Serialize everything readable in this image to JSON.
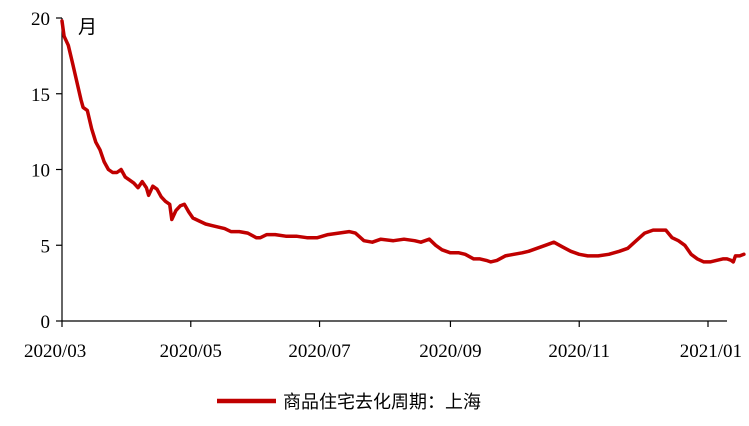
{
  "chart_data": {
    "type": "line",
    "title": "",
    "xlabel": "",
    "ylabel": "月",
    "ylim": [
      0,
      20
    ],
    "yticks": [
      0,
      5,
      10,
      15,
      20
    ],
    "xlim": [
      "2020-03-01",
      "2021-01-10"
    ],
    "xticks": [
      {
        "date": "2020-03-01",
        "label": "2020/03"
      },
      {
        "date": "2020-05-01",
        "label": "2020/05"
      },
      {
        "date": "2020-07-01",
        "label": "2020/07"
      },
      {
        "date": "2020-09-01",
        "label": "2020/09"
      },
      {
        "date": "2020-11-01",
        "label": "2020/11"
      },
      {
        "date": "2021-01-01",
        "label": "2021/01"
      }
    ],
    "grid": false,
    "legend_position": "bottom-center",
    "series": [
      {
        "name": "商品住宅去化周期：上海",
        "color": "#c00000",
        "points": [
          [
            "2020-03-01",
            19.8
          ],
          [
            "2020-03-02",
            18.8
          ],
          [
            "2020-03-04",
            18.2
          ],
          [
            "2020-03-06",
            17.0
          ],
          [
            "2020-03-08",
            15.8
          ],
          [
            "2020-03-10",
            14.6
          ],
          [
            "2020-03-11",
            14.1
          ],
          [
            "2020-03-13",
            13.9
          ],
          [
            "2020-03-15",
            12.7
          ],
          [
            "2020-03-17",
            11.8
          ],
          [
            "2020-03-19",
            11.3
          ],
          [
            "2020-03-21",
            10.5
          ],
          [
            "2020-03-23",
            10.0
          ],
          [
            "2020-03-25",
            9.8
          ],
          [
            "2020-03-27",
            9.8
          ],
          [
            "2020-03-29",
            10.0
          ],
          [
            "2020-03-31",
            9.5
          ],
          [
            "2020-04-02",
            9.3
          ],
          [
            "2020-04-04",
            9.1
          ],
          [
            "2020-04-06",
            8.8
          ],
          [
            "2020-04-08",
            9.2
          ],
          [
            "2020-04-10",
            8.8
          ],
          [
            "2020-04-11",
            8.3
          ],
          [
            "2020-04-13",
            8.9
          ],
          [
            "2020-04-15",
            8.7
          ],
          [
            "2020-04-17",
            8.2
          ],
          [
            "2020-04-19",
            7.9
          ],
          [
            "2020-04-21",
            7.7
          ],
          [
            "2020-04-22",
            6.7
          ],
          [
            "2020-04-24",
            7.3
          ],
          [
            "2020-04-26",
            7.6
          ],
          [
            "2020-04-28",
            7.7
          ],
          [
            "2020-04-30",
            7.2
          ],
          [
            "2020-05-02",
            6.8
          ],
          [
            "2020-05-05",
            6.6
          ],
          [
            "2020-05-08",
            6.4
          ],
          [
            "2020-05-11",
            6.3
          ],
          [
            "2020-05-14",
            6.2
          ],
          [
            "2020-05-17",
            6.1
          ],
          [
            "2020-05-20",
            5.9
          ],
          [
            "2020-05-24",
            5.9
          ],
          [
            "2020-05-28",
            5.8
          ],
          [
            "2020-06-01",
            5.5
          ],
          [
            "2020-06-03",
            5.5
          ],
          [
            "2020-06-06",
            5.7
          ],
          [
            "2020-06-10",
            5.7
          ],
          [
            "2020-06-15",
            5.6
          ],
          [
            "2020-06-20",
            5.6
          ],
          [
            "2020-06-25",
            5.5
          ],
          [
            "2020-06-30",
            5.5
          ],
          [
            "2020-07-05",
            5.7
          ],
          [
            "2020-07-10",
            5.8
          ],
          [
            "2020-07-15",
            5.9
          ],
          [
            "2020-07-18",
            5.8
          ],
          [
            "2020-07-22",
            5.3
          ],
          [
            "2020-07-26",
            5.2
          ],
          [
            "2020-07-30",
            5.4
          ],
          [
            "2020-08-05",
            5.3
          ],
          [
            "2020-08-10",
            5.4
          ],
          [
            "2020-08-15",
            5.3
          ],
          [
            "2020-08-18",
            5.2
          ],
          [
            "2020-08-22",
            5.4
          ],
          [
            "2020-08-25",
            5.0
          ],
          [
            "2020-08-28",
            4.7
          ],
          [
            "2020-09-01",
            4.5
          ],
          [
            "2020-09-05",
            4.5
          ],
          [
            "2020-09-08",
            4.4
          ],
          [
            "2020-09-12",
            4.1
          ],
          [
            "2020-09-15",
            4.1
          ],
          [
            "2020-09-18",
            4.0
          ],
          [
            "2020-09-20",
            3.9
          ],
          [
            "2020-09-23",
            4.0
          ],
          [
            "2020-09-27",
            4.3
          ],
          [
            "2020-10-01",
            4.4
          ],
          [
            "2020-10-05",
            4.5
          ],
          [
            "2020-10-08",
            4.6
          ],
          [
            "2020-10-12",
            4.8
          ],
          [
            "2020-10-16",
            5.0
          ],
          [
            "2020-10-20",
            5.2
          ],
          [
            "2020-10-24",
            4.9
          ],
          [
            "2020-10-28",
            4.6
          ],
          [
            "2020-11-01",
            4.4
          ],
          [
            "2020-11-05",
            4.3
          ],
          [
            "2020-11-10",
            4.3
          ],
          [
            "2020-11-15",
            4.4
          ],
          [
            "2020-11-20",
            4.6
          ],
          [
            "2020-11-24",
            4.8
          ],
          [
            "2020-11-28",
            5.3
          ],
          [
            "2020-12-02",
            5.8
          ],
          [
            "2020-12-06",
            6.0
          ],
          [
            "2020-12-09",
            6.0
          ],
          [
            "2020-12-12",
            6.0
          ],
          [
            "2020-12-15",
            5.5
          ],
          [
            "2020-12-18",
            5.3
          ],
          [
            "2020-12-21",
            5.0
          ],
          [
            "2020-12-24",
            4.4
          ],
          [
            "2020-12-27",
            4.1
          ],
          [
            "2020-12-30",
            3.9
          ],
          [
            "2021-01-02",
            3.9
          ],
          [
            "2021-01-05",
            4.0
          ],
          [
            "2021-01-08",
            4.1
          ],
          [
            "2021-01-10",
            4.1
          ],
          [
            "2021-01-12",
            4.0
          ],
          [
            "2021-01-13",
            3.9
          ],
          [
            "2021-01-14",
            4.3
          ],
          [
            "2021-01-16",
            4.3
          ],
          [
            "2021-01-18",
            4.4
          ]
        ]
      }
    ]
  }
}
